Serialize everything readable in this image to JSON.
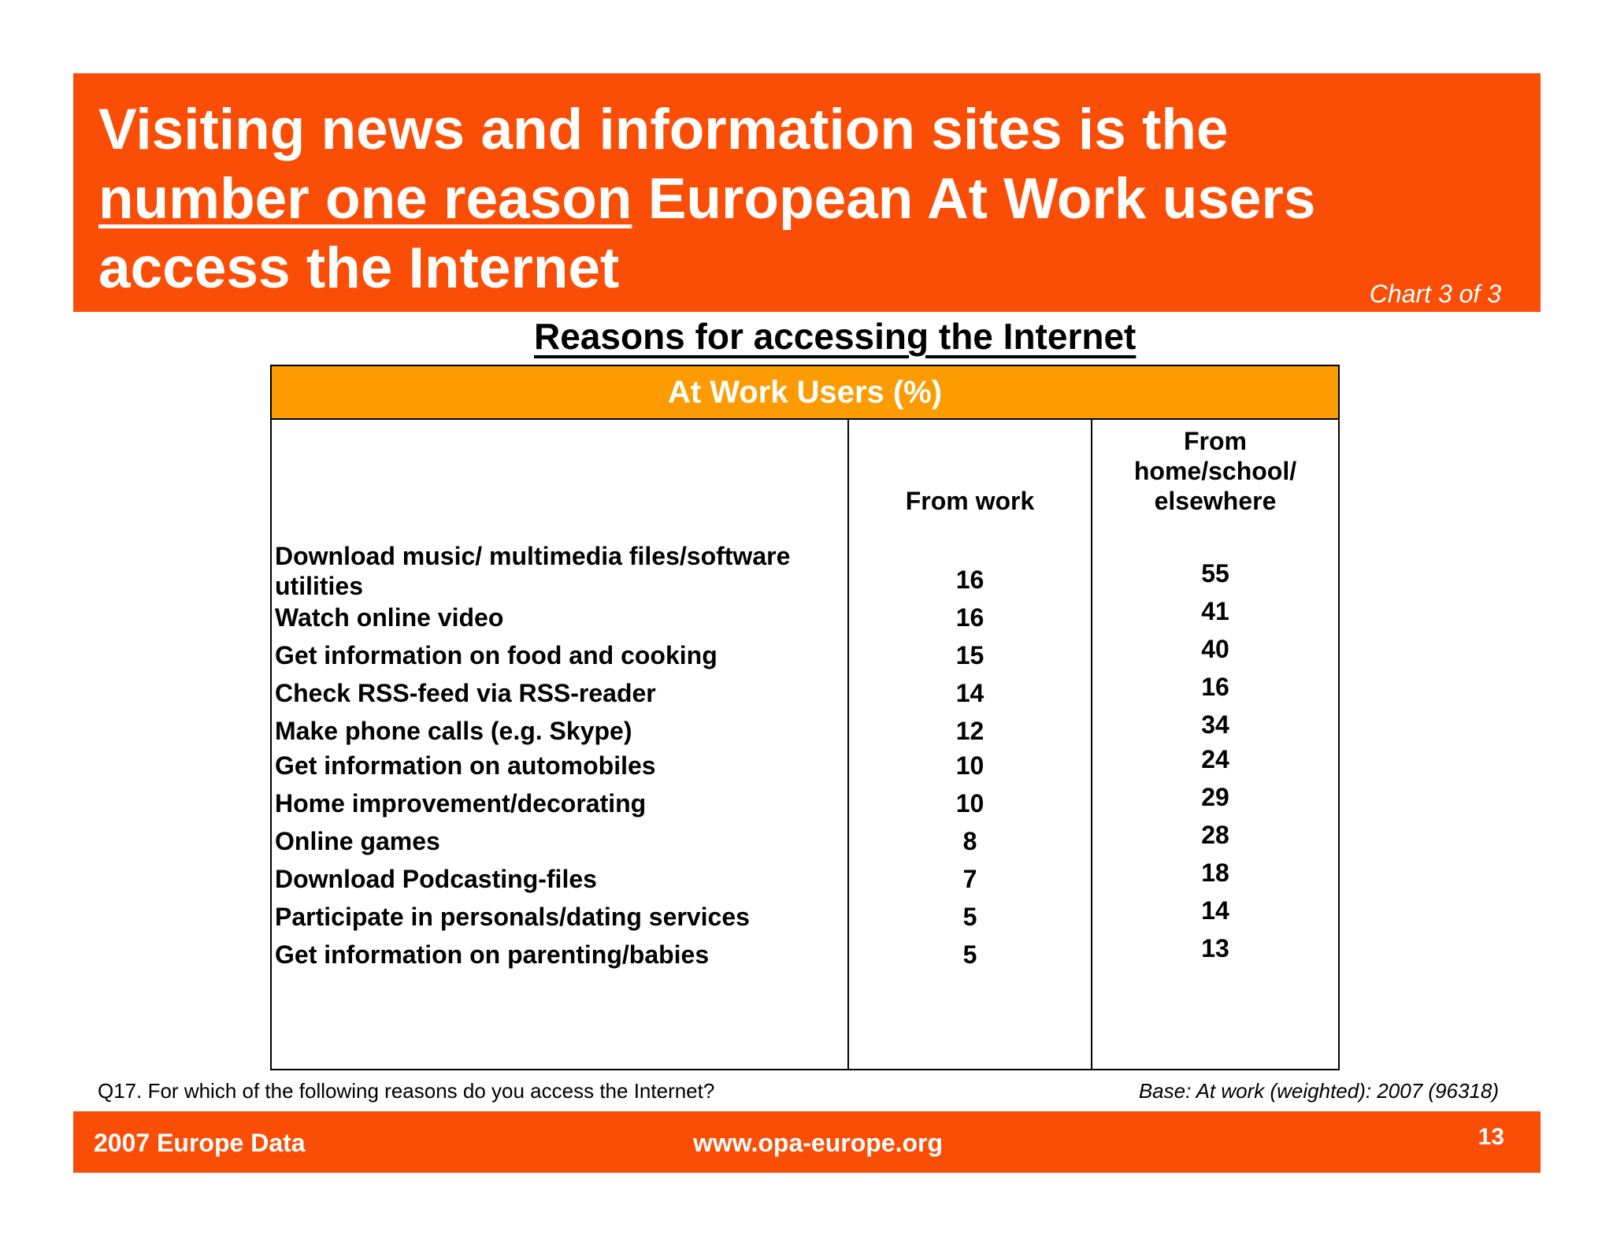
{
  "header": {
    "title_line1": "Visiting news and information sites is the",
    "title_line2_underlined": "number one reason",
    "title_line2_rest": " European At Work users",
    "title_line3": "access the Internet",
    "chart_counter": "Chart 3 of 3"
  },
  "chart_data": {
    "type": "table",
    "title": "Reasons for accessing the Internet",
    "table_header": "At Work Users (%)",
    "columns": [
      "From work",
      "From\nhome/school/\nelsewhere"
    ],
    "categories": [
      "Download music/ multimedia files/software\nutilities",
      "Watch online video",
      "Get information on food and cooking",
      "Check RSS-feed via RSS-reader",
      "Make phone calls (e.g. Skype)",
      "Get information on automobiles",
      "Home improvement/decorating",
      "Online games",
      "Download Podcasting-files",
      "Participate in personals/dating services",
      "Get information on parenting/babies"
    ],
    "series": [
      {
        "name": "From work",
        "values": [
          16,
          16,
          15,
          14,
          12,
          10,
          10,
          8,
          7,
          5,
          5
        ]
      },
      {
        "name": "From home/school/elsewhere",
        "values": [
          55,
          41,
          40,
          16,
          34,
          24,
          29,
          28,
          18,
          14,
          13
        ]
      }
    ]
  },
  "footnotes": {
    "question": "Q17. For which of the following reasons do you access the Internet?",
    "base": "Base: At work (weighted): 2007  (96318)"
  },
  "footer": {
    "left": "2007 Europe Data",
    "center": "www.opa-europe.org",
    "page_number": "13"
  },
  "colors": {
    "header_band": "#fa4d05",
    "table_band": "#fc9c02",
    "text": "#000000"
  }
}
